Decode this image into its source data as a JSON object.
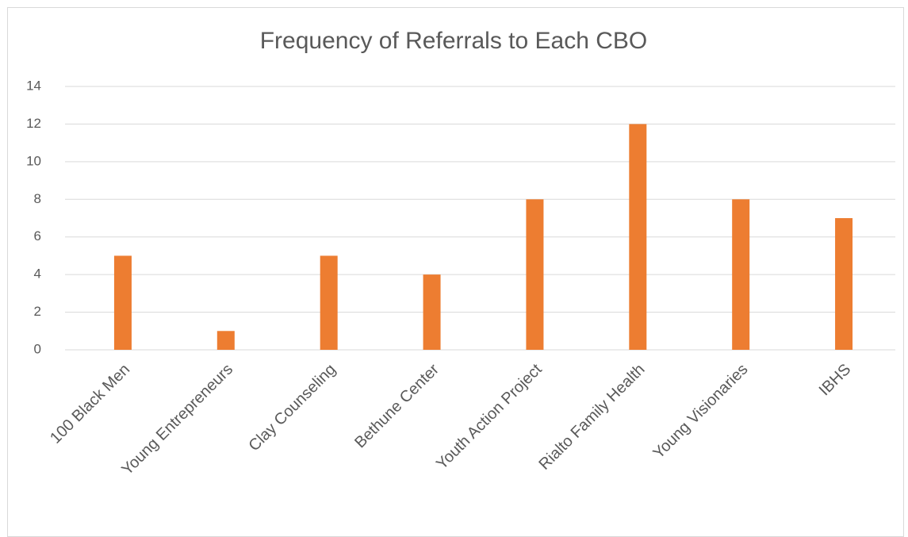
{
  "chart_data": {
    "type": "bar",
    "title": "Frequency of Referrals to Each CBO",
    "categories": [
      "100 Black Men",
      "Young Entrepreneurs",
      "Clay Counseling",
      "Bethune Center",
      "Youth Action Project",
      "Rialto Family Health",
      "Young Visionaries",
      "IBHS"
    ],
    "values": [
      5,
      1,
      5,
      4,
      8,
      12,
      8,
      7
    ],
    "color": "#ed7d31",
    "ylim": [
      0,
      14
    ],
    "yticks": [
      0,
      2,
      4,
      6,
      8,
      10,
      12,
      14
    ],
    "grid": true
  }
}
